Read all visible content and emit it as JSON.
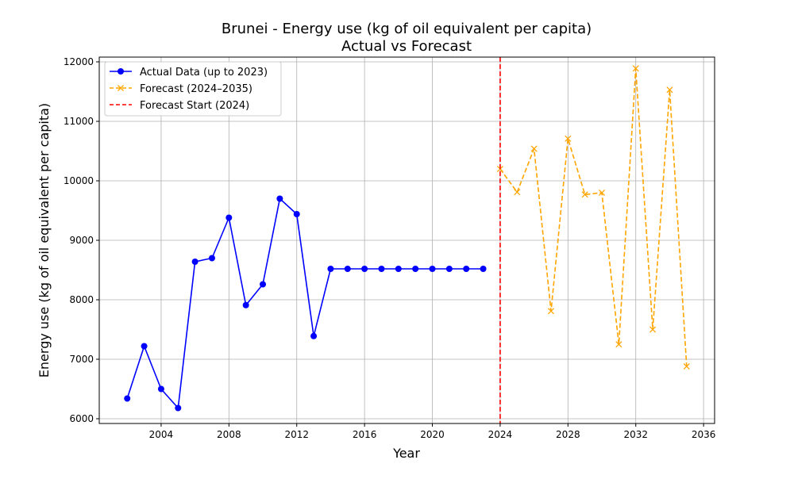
{
  "chart_data": {
    "type": "line",
    "title": "Brunei - Energy use (kg of oil equivalent per capita)",
    "subtitle": "Actual vs Forecast",
    "xlabel": "Year",
    "ylabel": "Energy use (kg of oil equivalent per capita)",
    "xlim": [
      2000.35,
      2036.65
    ],
    "ylim": [
      5920,
      12080
    ],
    "x_ticks": [
      2004,
      2008,
      2012,
      2016,
      2020,
      2024,
      2028,
      2032,
      2036
    ],
    "y_ticks": [
      6000,
      7000,
      8000,
      9000,
      10000,
      11000,
      12000
    ],
    "grid": true,
    "legend_position": "top-left",
    "series": [
      {
        "name": "Actual Data (up to 2023)",
        "color": "#0000ff",
        "line_style": "solid",
        "marker": "circle",
        "x": [
          2002,
          2003,
          2004,
          2005,
          2006,
          2007,
          2008,
          2009,
          2010,
          2011,
          2012,
          2013,
          2014,
          2015,
          2016,
          2017,
          2018,
          2019,
          2020,
          2021,
          2022,
          2023
        ],
        "y": [
          6340,
          7220,
          6500,
          6180,
          8640,
          8700,
          9380,
          7910,
          8260,
          9700,
          9440,
          7390,
          8520,
          8520,
          8520,
          8520,
          8520,
          8520,
          8520,
          8520,
          8520,
          8520
        ]
      },
      {
        "name": "Forecast (2024–2035)",
        "color": "#ffa500",
        "line_style": "dashed",
        "marker": "x",
        "x": [
          2024,
          2025,
          2026,
          2027,
          2028,
          2029,
          2030,
          2031,
          2032,
          2033,
          2034,
          2035
        ],
        "y": [
          10200,
          9810,
          10540,
          7810,
          10710,
          9770,
          9800,
          7250,
          11890,
          7500,
          11530,
          6880
        ]
      }
    ],
    "vline": {
      "name": "Forecast Start (2024)",
      "x": 2024,
      "color": "#ff0000",
      "line_style": "dashed"
    }
  }
}
